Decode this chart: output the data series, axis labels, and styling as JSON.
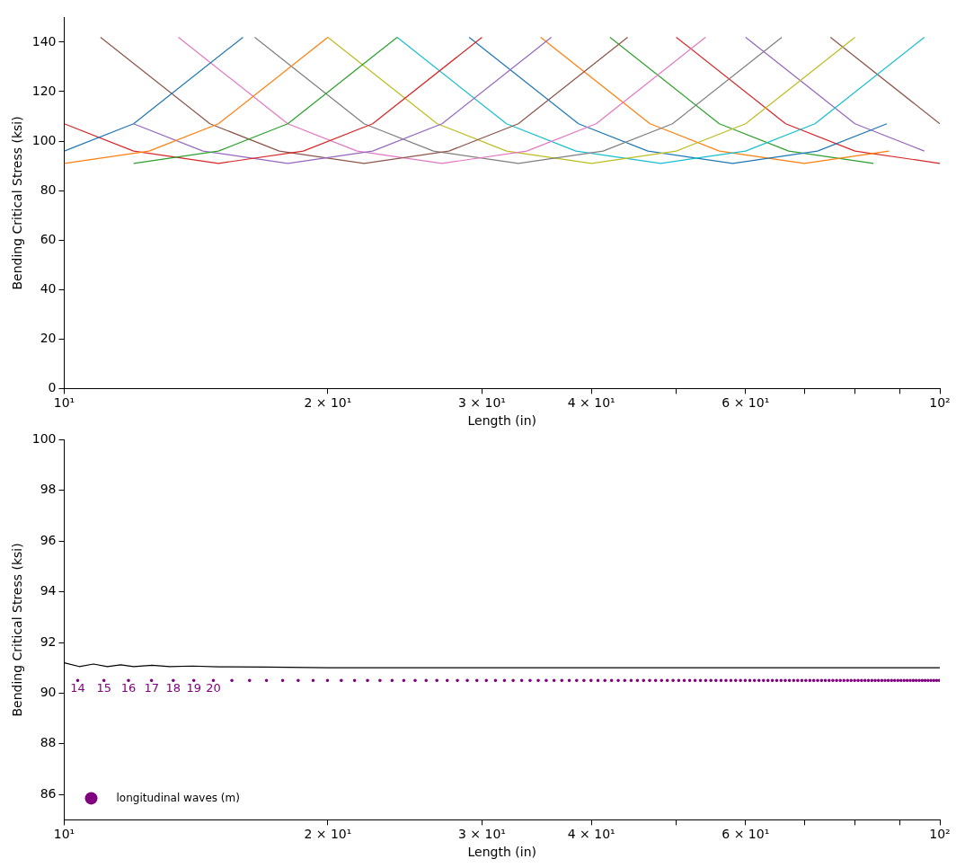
{
  "chart_data": [
    {
      "type": "line",
      "xlabel": "Length (in)",
      "ylabel": "Bending Critical Stress (ksi)",
      "log": "x",
      "legend": false,
      "marker": "none",
      "xlim": [
        10,
        100
      ],
      "xticks": [
        {
          "value": 10,
          "label": "10¹"
        },
        {
          "value": 20,
          "label": "2 × 10¹"
        },
        {
          "value": 30,
          "label": "3 × 10¹"
        },
        {
          "value": 40,
          "label": "4 × 10¹"
        },
        {
          "value": 50,
          "label": null
        },
        {
          "value": 60,
          "label": "6 × 10¹"
        },
        {
          "value": 70,
          "label": null
        },
        {
          "value": 80,
          "label": null
        },
        {
          "value": 90,
          "label": null
        },
        {
          "value": 100,
          "label": "10²"
        }
      ],
      "ylim": [
        0,
        150
      ],
      "yticks": [
        0,
        20,
        40,
        60,
        80,
        100,
        120,
        140
      ],
      "series": [
        {
          "color": "#1f77b4",
          "x": [
            10,
            12,
            16
          ],
          "values": [
            96,
            107,
            142
          ]
        },
        {
          "color": "#ff7f0e",
          "x": [
            10,
            12.5,
            15,
            20
          ],
          "values": [
            91,
            96,
            107,
            142
          ]
        },
        {
          "color": "#2ca02c",
          "x": [
            12,
            15,
            18,
            24
          ],
          "values": [
            91,
            96,
            107,
            142
          ]
        },
        {
          "color": "#d62728",
          "x": [
            10,
            12,
            15,
            18.75,
            22.5,
            30
          ],
          "values": [
            107,
            96,
            91,
            96,
            107,
            142
          ]
        },
        {
          "color": "#9467bd",
          "x": [
            12,
            14.4,
            18,
            22.5,
            27,
            36
          ],
          "values": [
            107,
            96,
            91,
            96,
            107,
            142
          ]
        },
        {
          "color": "#8c564b",
          "x": [
            11,
            14.67,
            17.6,
            22,
            27.5,
            33,
            44
          ],
          "values": [
            142,
            107,
            96,
            91,
            96,
            107,
            142
          ]
        },
        {
          "color": "#e377c2",
          "x": [
            13.5,
            18,
            21.6,
            27,
            33.75,
            40.5,
            54
          ],
          "values": [
            142,
            107,
            96,
            91,
            96,
            107,
            142
          ]
        },
        {
          "color": "#7f7f7f",
          "x": [
            16.5,
            22,
            26.4,
            33,
            41.25,
            49.5,
            66
          ],
          "values": [
            142,
            107,
            96,
            91,
            96,
            107,
            142
          ]
        },
        {
          "color": "#bcbd22",
          "x": [
            20,
            26.67,
            32,
            40,
            50,
            60,
            80
          ],
          "values": [
            142,
            107,
            96,
            91,
            96,
            107,
            142
          ]
        },
        {
          "color": "#17becf",
          "x": [
            24,
            32,
            38.4,
            48,
            60,
            72,
            96
          ],
          "values": [
            142,
            107,
            96,
            91,
            96,
            107,
            142
          ]
        },
        {
          "color": "#1f77b4",
          "x": [
            29,
            38.67,
            46.4,
            58,
            72.5,
            87
          ],
          "values": [
            142,
            107,
            96,
            91,
            96,
            107
          ]
        },
        {
          "color": "#ff7f0e",
          "x": [
            35,
            46.67,
            56,
            70,
            87.5
          ],
          "values": [
            142,
            107,
            96,
            91,
            96
          ]
        },
        {
          "color": "#2ca02c",
          "x": [
            42,
            56,
            67.2,
            84
          ],
          "values": [
            142,
            107,
            96,
            91
          ]
        },
        {
          "color": "#d62728",
          "x": [
            50,
            66.67,
            80,
            100
          ],
          "values": [
            142,
            107,
            96,
            91
          ]
        },
        {
          "color": "#9467bd",
          "x": [
            60,
            80,
            96
          ],
          "values": [
            142,
            107,
            96
          ]
        },
        {
          "color": "#8c564b",
          "x": [
            75,
            100
          ],
          "values": [
            142,
            107
          ]
        }
      ]
    },
    {
      "type": "line",
      "xlabel": "Length (in)",
      "ylabel": "Bending Critical Stress (ksi)",
      "log": "x",
      "legend": "bottom left",
      "xlim": [
        10,
        100
      ],
      "xticks": [
        {
          "value": 10,
          "label": "10¹"
        },
        {
          "value": 20,
          "label": "2 × 10¹"
        },
        {
          "value": 30,
          "label": "3 × 10¹"
        },
        {
          "value": 40,
          "label": "4 × 10¹"
        },
        {
          "value": 50,
          "label": null
        },
        {
          "value": 60,
          "label": "6 × 10¹"
        },
        {
          "value": 70,
          "label": null
        },
        {
          "value": 80,
          "label": null
        },
        {
          "value": 90,
          "label": null
        },
        {
          "value": 100,
          "label": "10²"
        }
      ],
      "ylim": [
        85,
        100
      ],
      "yticks": [
        86,
        88,
        90,
        92,
        94,
        96,
        98,
        100
      ],
      "annotations": [
        {
          "text": "14",
          "x": 10.36,
          "y": 90.5
        },
        {
          "text": "15",
          "x": 11.1,
          "y": 90.5
        },
        {
          "text": "16",
          "x": 11.84,
          "y": 90.5
        },
        {
          "text": "17",
          "x": 12.58,
          "y": 90.5
        },
        {
          "text": "18",
          "x": 13.32,
          "y": 90.5
        },
        {
          "text": "19",
          "x": 14.06,
          "y": 90.5
        },
        {
          "text": "20",
          "x": 14.8,
          "y": 90.5
        }
      ],
      "series": [
        {
          "type": "line",
          "marker": "none",
          "color": "#000000",
          "x": [
            10,
            10.4,
            10.8,
            11.2,
            11.6,
            12,
            12.6,
            13.2,
            14,
            15,
            17,
            20,
            30,
            50,
            100
          ],
          "values": [
            91.2,
            91.05,
            91.15,
            91.05,
            91.12,
            91.05,
            91.1,
            91.05,
            91.07,
            91.04,
            91.03,
            91.0,
            91.0,
            91.0,
            91.0
          ]
        },
        {
          "type": "scatter",
          "marker": "circle",
          "name": "longitudinal waves (m)",
          "color": "#800080",
          "x": [
            10.36,
            11.1,
            11.84,
            12.58,
            13.32,
            14.06,
            14.8,
            15.54,
            16.28,
            17.02,
            17.76,
            18.5,
            19.24,
            19.98,
            20.72,
            21.46,
            22.2,
            22.94,
            23.68,
            24.42,
            25.16,
            25.9,
            26.64,
            27.38,
            28.12,
            28.86,
            29.6,
            30.34,
            31.08,
            31.82,
            32.56,
            33.3,
            34.04,
            34.78,
            35.52,
            36.26,
            37,
            37.74,
            38.48,
            39.22,
            39.96,
            40.7,
            41.44,
            42.18,
            42.92,
            43.66,
            44.4,
            45.14,
            45.88,
            46.62,
            47.36,
            48.1,
            48.84,
            49.58,
            50.32,
            51.06,
            51.8,
            52.54,
            53.28,
            54.02,
            54.76,
            55.5,
            56.24,
            56.98,
            57.72,
            58.46,
            59.2,
            59.94,
            60.68,
            61.42,
            62.16,
            62.9,
            63.64,
            64.38,
            65.12,
            65.86,
            66.6,
            67.34,
            68.08,
            68.82,
            69.56,
            70.3,
            71.04,
            71.78,
            72.52,
            73.26,
            74,
            74.74,
            75.48,
            76.22,
            76.96,
            77.7,
            78.44,
            79.18,
            79.92,
            80.66,
            81.4,
            82.14,
            82.88,
            83.62,
            84.36,
            85.1,
            85.84,
            86.58,
            87.32,
            88.06,
            88.8,
            89.54,
            90.28,
            91.02,
            91.76,
            92.5,
            93.24,
            93.98,
            94.72,
            95.46,
            96.2,
            96.94,
            97.68,
            98.42,
            99.16,
            99.9
          ],
          "values": [
            90.5,
            90.5,
            90.5,
            90.5,
            90.5,
            90.5,
            90.5,
            90.5,
            90.5,
            90.5,
            90.5,
            90.5,
            90.5,
            90.5,
            90.5,
            90.5,
            90.5,
            90.5,
            90.5,
            90.5,
            90.5,
            90.5,
            90.5,
            90.5,
            90.5,
            90.5,
            90.5,
            90.5,
            90.5,
            90.5,
            90.5,
            90.5,
            90.5,
            90.5,
            90.5,
            90.5,
            90.5,
            90.5,
            90.5,
            90.5,
            90.5,
            90.5,
            90.5,
            90.5,
            90.5,
            90.5,
            90.5,
            90.5,
            90.5,
            90.5,
            90.5,
            90.5,
            90.5,
            90.5,
            90.5,
            90.5,
            90.5,
            90.5,
            90.5,
            90.5,
            90.5,
            90.5,
            90.5,
            90.5,
            90.5,
            90.5,
            90.5,
            90.5,
            90.5,
            90.5,
            90.5,
            90.5,
            90.5,
            90.5,
            90.5,
            90.5,
            90.5,
            90.5,
            90.5,
            90.5,
            90.5,
            90.5,
            90.5,
            90.5,
            90.5,
            90.5,
            90.5,
            90.5,
            90.5,
            90.5,
            90.5,
            90.5,
            90.5,
            90.5,
            90.5,
            90.5,
            90.5,
            90.5,
            90.5,
            90.5,
            90.5,
            90.5,
            90.5,
            90.5,
            90.5,
            90.5,
            90.5,
            90.5,
            90.5,
            90.5,
            90.5,
            90.5,
            90.5,
            90.5,
            90.5,
            90.5,
            90.5,
            90.5,
            90.5,
            90.5,
            90.5,
            90.5
          ]
        }
      ]
    }
  ]
}
